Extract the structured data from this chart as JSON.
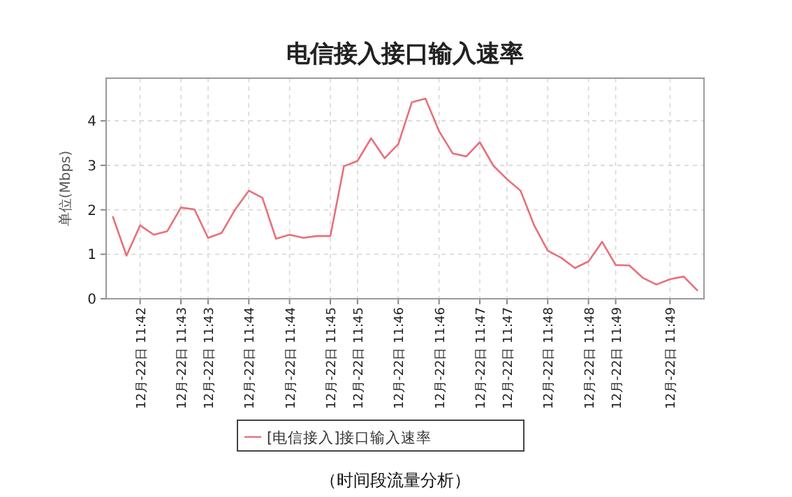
{
  "chart_data": {
    "type": "line",
    "title": "电信接入接口输入速率",
    "ylabel": "单位(Mbps)",
    "categories": [
      null,
      null,
      "12月-22日 11:42",
      null,
      null,
      "12月-22日 11:43",
      null,
      "12月-22日 11:43",
      null,
      null,
      "12月-22日 11:44",
      null,
      null,
      "12月-22日 11:44",
      null,
      null,
      "12月-22日 11:45",
      null,
      "12月-22日 11:45",
      null,
      null,
      "12月-22日 11:46",
      null,
      null,
      "12月-22日 11:46",
      null,
      null,
      "12月-22日 11:47",
      null,
      "12月-22日 11:47",
      null,
      null,
      "12月-22日 11:48",
      null,
      null,
      "12月-22日 11:48",
      null,
      "12月-22日 11:49",
      null,
      null,
      null,
      "12月-22日 11:49",
      null,
      null
    ],
    "series": [
      {
        "name": "[电信接入]接口输入速率",
        "color": "#e8707a",
        "values": [
          1.84,
          0.97,
          1.65,
          1.44,
          1.52,
          2.05,
          2.01,
          1.37,
          1.48,
          2.01,
          2.43,
          2.27,
          1.35,
          1.44,
          1.37,
          1.41,
          1.41,
          2.98,
          3.1,
          3.61,
          3.16,
          3.48,
          4.42,
          4.5,
          3.77,
          3.27,
          3.2,
          3.52,
          2.99,
          2.69,
          2.43,
          1.65,
          1.08,
          0.92,
          0.69,
          0.84,
          1.28,
          0.76,
          0.75,
          0.47,
          0.32,
          0.44,
          0.5,
          0.19
        ]
      }
    ],
    "ylim": [
      0,
      4.96
    ],
    "yticks": [
      0,
      1,
      2,
      3,
      4
    ],
    "grid": true,
    "legend": "bottom",
    "annotations": [
      "（时间段流量分析）"
    ]
  }
}
